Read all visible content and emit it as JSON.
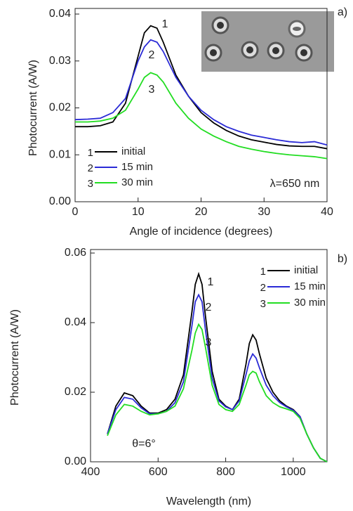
{
  "chart_data": [
    {
      "type": "line",
      "panel_label": "a)",
      "x_label": "Angle of incidence (degrees)",
      "y_label": "Photocurrent (A/W)",
      "annotations": [
        "λ=650 nm"
      ],
      "x": [
        0,
        2,
        4,
        6,
        8,
        10,
        11,
        12,
        13,
        14,
        16,
        18,
        20,
        22,
        24,
        26,
        28,
        30,
        32,
        34,
        36,
        38,
        40
      ],
      "series": [
        {
          "name": "initial",
          "label": "1",
          "color": "#000000",
          "values": [
            0.016,
            0.016,
            0.0162,
            0.017,
            0.021,
            0.031,
            0.036,
            0.0375,
            0.037,
            0.034,
            0.027,
            0.0225,
            0.019,
            0.0168,
            0.0152,
            0.014,
            0.0132,
            0.0127,
            0.0122,
            0.0119,
            0.0118,
            0.0118,
            0.0113
          ]
        },
        {
          "name": "15 min",
          "label": "2",
          "color": "#2b2bd6",
          "values": [
            0.0175,
            0.0176,
            0.0178,
            0.019,
            0.022,
            0.03,
            0.033,
            0.0345,
            0.034,
            0.032,
            0.0265,
            0.0225,
            0.0195,
            0.0175,
            0.016,
            0.015,
            0.0142,
            0.0137,
            0.0132,
            0.0128,
            0.0126,
            0.0128,
            0.0121
          ]
        },
        {
          "name": "30 min",
          "label": "3",
          "color": "#22dd22",
          "values": [
            0.017,
            0.017,
            0.0172,
            0.0178,
            0.0195,
            0.024,
            0.0265,
            0.0275,
            0.027,
            0.0255,
            0.021,
            0.0178,
            0.0155,
            0.014,
            0.0128,
            0.0118,
            0.0112,
            0.0107,
            0.0103,
            0.01,
            0.0098,
            0.0096,
            0.0092
          ]
        }
      ],
      "xlim": [
        0,
        40
      ],
      "xticks": [
        0,
        10,
        20,
        30,
        40
      ],
      "ylim": [
        0,
        0.04
      ],
      "yticks": [
        {
          "value": 0,
          "label": "0.00"
        },
        0.01,
        0.02,
        0.03,
        0.04
      ]
    },
    {
      "type": "line",
      "panel_label": "b)",
      "x_label": "Wavelength (nm)",
      "y_label": "Photocurrent (A/W)",
      "annotations": [
        "θ=6°"
      ],
      "x": [
        450,
        475,
        500,
        525,
        550,
        575,
        600,
        625,
        650,
        675,
        700,
        710,
        720,
        730,
        740,
        760,
        780,
        800,
        820,
        840,
        860,
        870,
        880,
        890,
        900,
        920,
        940,
        960,
        980,
        1000,
        1020,
        1040,
        1060,
        1080,
        1100
      ],
      "series": [
        {
          "name": "initial",
          "label": "1",
          "color": "#000000",
          "values": [
            0.008,
            0.016,
            0.0198,
            0.019,
            0.016,
            0.014,
            0.014,
            0.015,
            0.018,
            0.025,
            0.043,
            0.051,
            0.054,
            0.051,
            0.042,
            0.026,
            0.018,
            0.016,
            0.015,
            0.018,
            0.028,
            0.034,
            0.0365,
            0.035,
            0.031,
            0.024,
            0.02,
            0.0175,
            0.016,
            0.015,
            0.013,
            0.008,
            0.004,
            0.001,
            0
          ]
        },
        {
          "name": "15 min",
          "label": "2",
          "color": "#2b2bd6",
          "values": [
            0.008,
            0.015,
            0.0185,
            0.018,
            0.0155,
            0.0138,
            0.0138,
            0.0145,
            0.017,
            0.023,
            0.039,
            0.046,
            0.048,
            0.046,
            0.038,
            0.024,
            0.0175,
            0.0158,
            0.015,
            0.0175,
            0.025,
            0.029,
            0.031,
            0.0298,
            0.027,
            0.022,
            0.019,
            0.017,
            0.0158,
            0.0148,
            0.013,
            0.008,
            0.004,
            0.001,
            0
          ]
        },
        {
          "name": "30 min",
          "label": "3",
          "color": "#22dd22",
          "values": [
            0.0075,
            0.0135,
            0.0165,
            0.016,
            0.0145,
            0.0135,
            0.0138,
            0.0145,
            0.016,
            0.021,
            0.032,
            0.037,
            0.0395,
            0.038,
            0.033,
            0.022,
            0.0165,
            0.015,
            0.0145,
            0.0165,
            0.022,
            0.025,
            0.026,
            0.0255,
            0.023,
            0.019,
            0.017,
            0.0158,
            0.0152,
            0.0145,
            0.0125,
            0.008,
            0.004,
            0.001,
            0
          ]
        }
      ],
      "xlim": [
        400,
        1100
      ],
      "xticks": [
        400,
        600,
        800,
        1000
      ],
      "ylim": [
        0,
        0.06
      ],
      "yticks": [
        {
          "value": 0,
          "label": "0.00"
        },
        0.02,
        0.04,
        0.06
      ]
    }
  ]
}
